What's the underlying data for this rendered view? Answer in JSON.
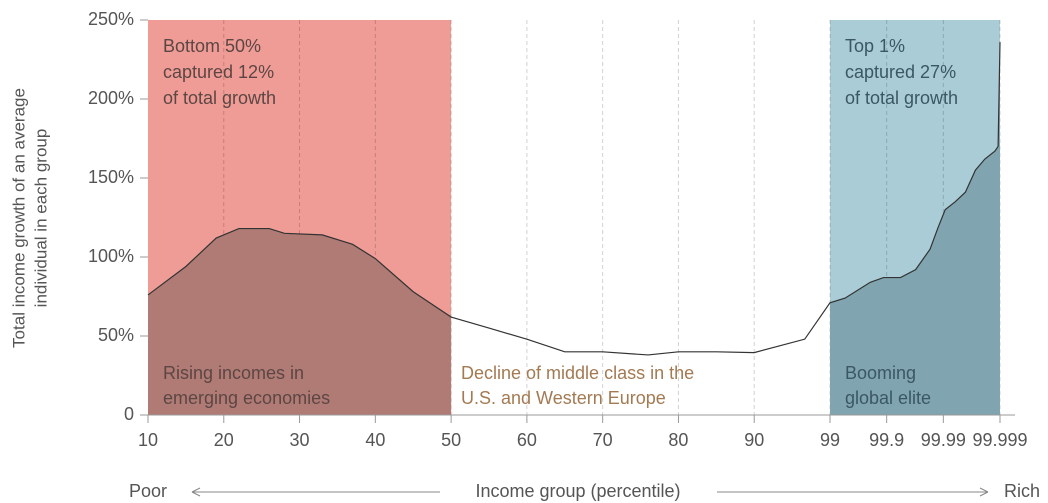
{
  "chart_data": {
    "type": "line",
    "x_label": "Income group (percentile)",
    "x_left_label": "Poor",
    "x_right_label": "Rich",
    "y_label": [
      "Total income growth of an average",
      "individual in each group"
    ],
    "xticks": [
      10,
      20,
      30,
      40,
      50,
      60,
      70,
      80,
      90,
      99,
      99.9,
      99.99,
      99.999
    ],
    "ylim": [
      0,
      250
    ],
    "yticks": [
      {
        "value": 0,
        "label": "0"
      },
      {
        "value": 50,
        "label": "50%"
      },
      {
        "value": 100,
        "label": "100%"
      },
      {
        "value": 150,
        "label": "150%"
      },
      {
        "value": 200,
        "label": "200%"
      },
      {
        "value": 250,
        "label": "250%"
      }
    ],
    "grid": true,
    "line_color": "#333333",
    "x": [
      10,
      15,
      19,
      22,
      26,
      28,
      33,
      37,
      40,
      45,
      50,
      55,
      60,
      65,
      70,
      76,
      80,
      85,
      90,
      96,
      99,
      99.24,
      99.64,
      99.85,
      99.922,
      99.946,
      99.969,
      99.981,
      99.9903,
      99.9919,
      99.9935,
      99.9951,
      99.9966,
      99.9982,
      99.9987,
      99.999
    ],
    "values": [
      76,
      94,
      112,
      118,
      118,
      115,
      114,
      108,
      99,
      78,
      62,
      55,
      48,
      40,
      40,
      38,
      40,
      40,
      39.5,
      48,
      71,
      74,
      84,
      87,
      87,
      92,
      105,
      118,
      130,
      135,
      141,
      155,
      162,
      167,
      170,
      236
    ],
    "regions": [
      {
        "x0": 10,
        "x1": 50,
        "color": "#f09c96",
        "area_color": "#b17b75",
        "text_color": "#5c4644",
        "top_text": [
          "Bottom 50%",
          "captured 12%",
          "of total growth"
        ],
        "bottom_text": [
          "Rising incomes in",
          "emerging economies"
        ]
      },
      {
        "x0": 99,
        "x1": 99.999,
        "color": "#a9ccd6",
        "area_color": "#80a5b1",
        "text_color": "#3b5763",
        "top_text": [
          "Top 1%",
          "captured 27%",
          "of total growth"
        ],
        "bottom_text": [
          "Booming",
          "global elite"
        ]
      }
    ],
    "middle_text": [
      "Decline of middle class in the",
      "U.S. and Western Europe"
    ],
    "middle_text_color": "#a37a52"
  }
}
